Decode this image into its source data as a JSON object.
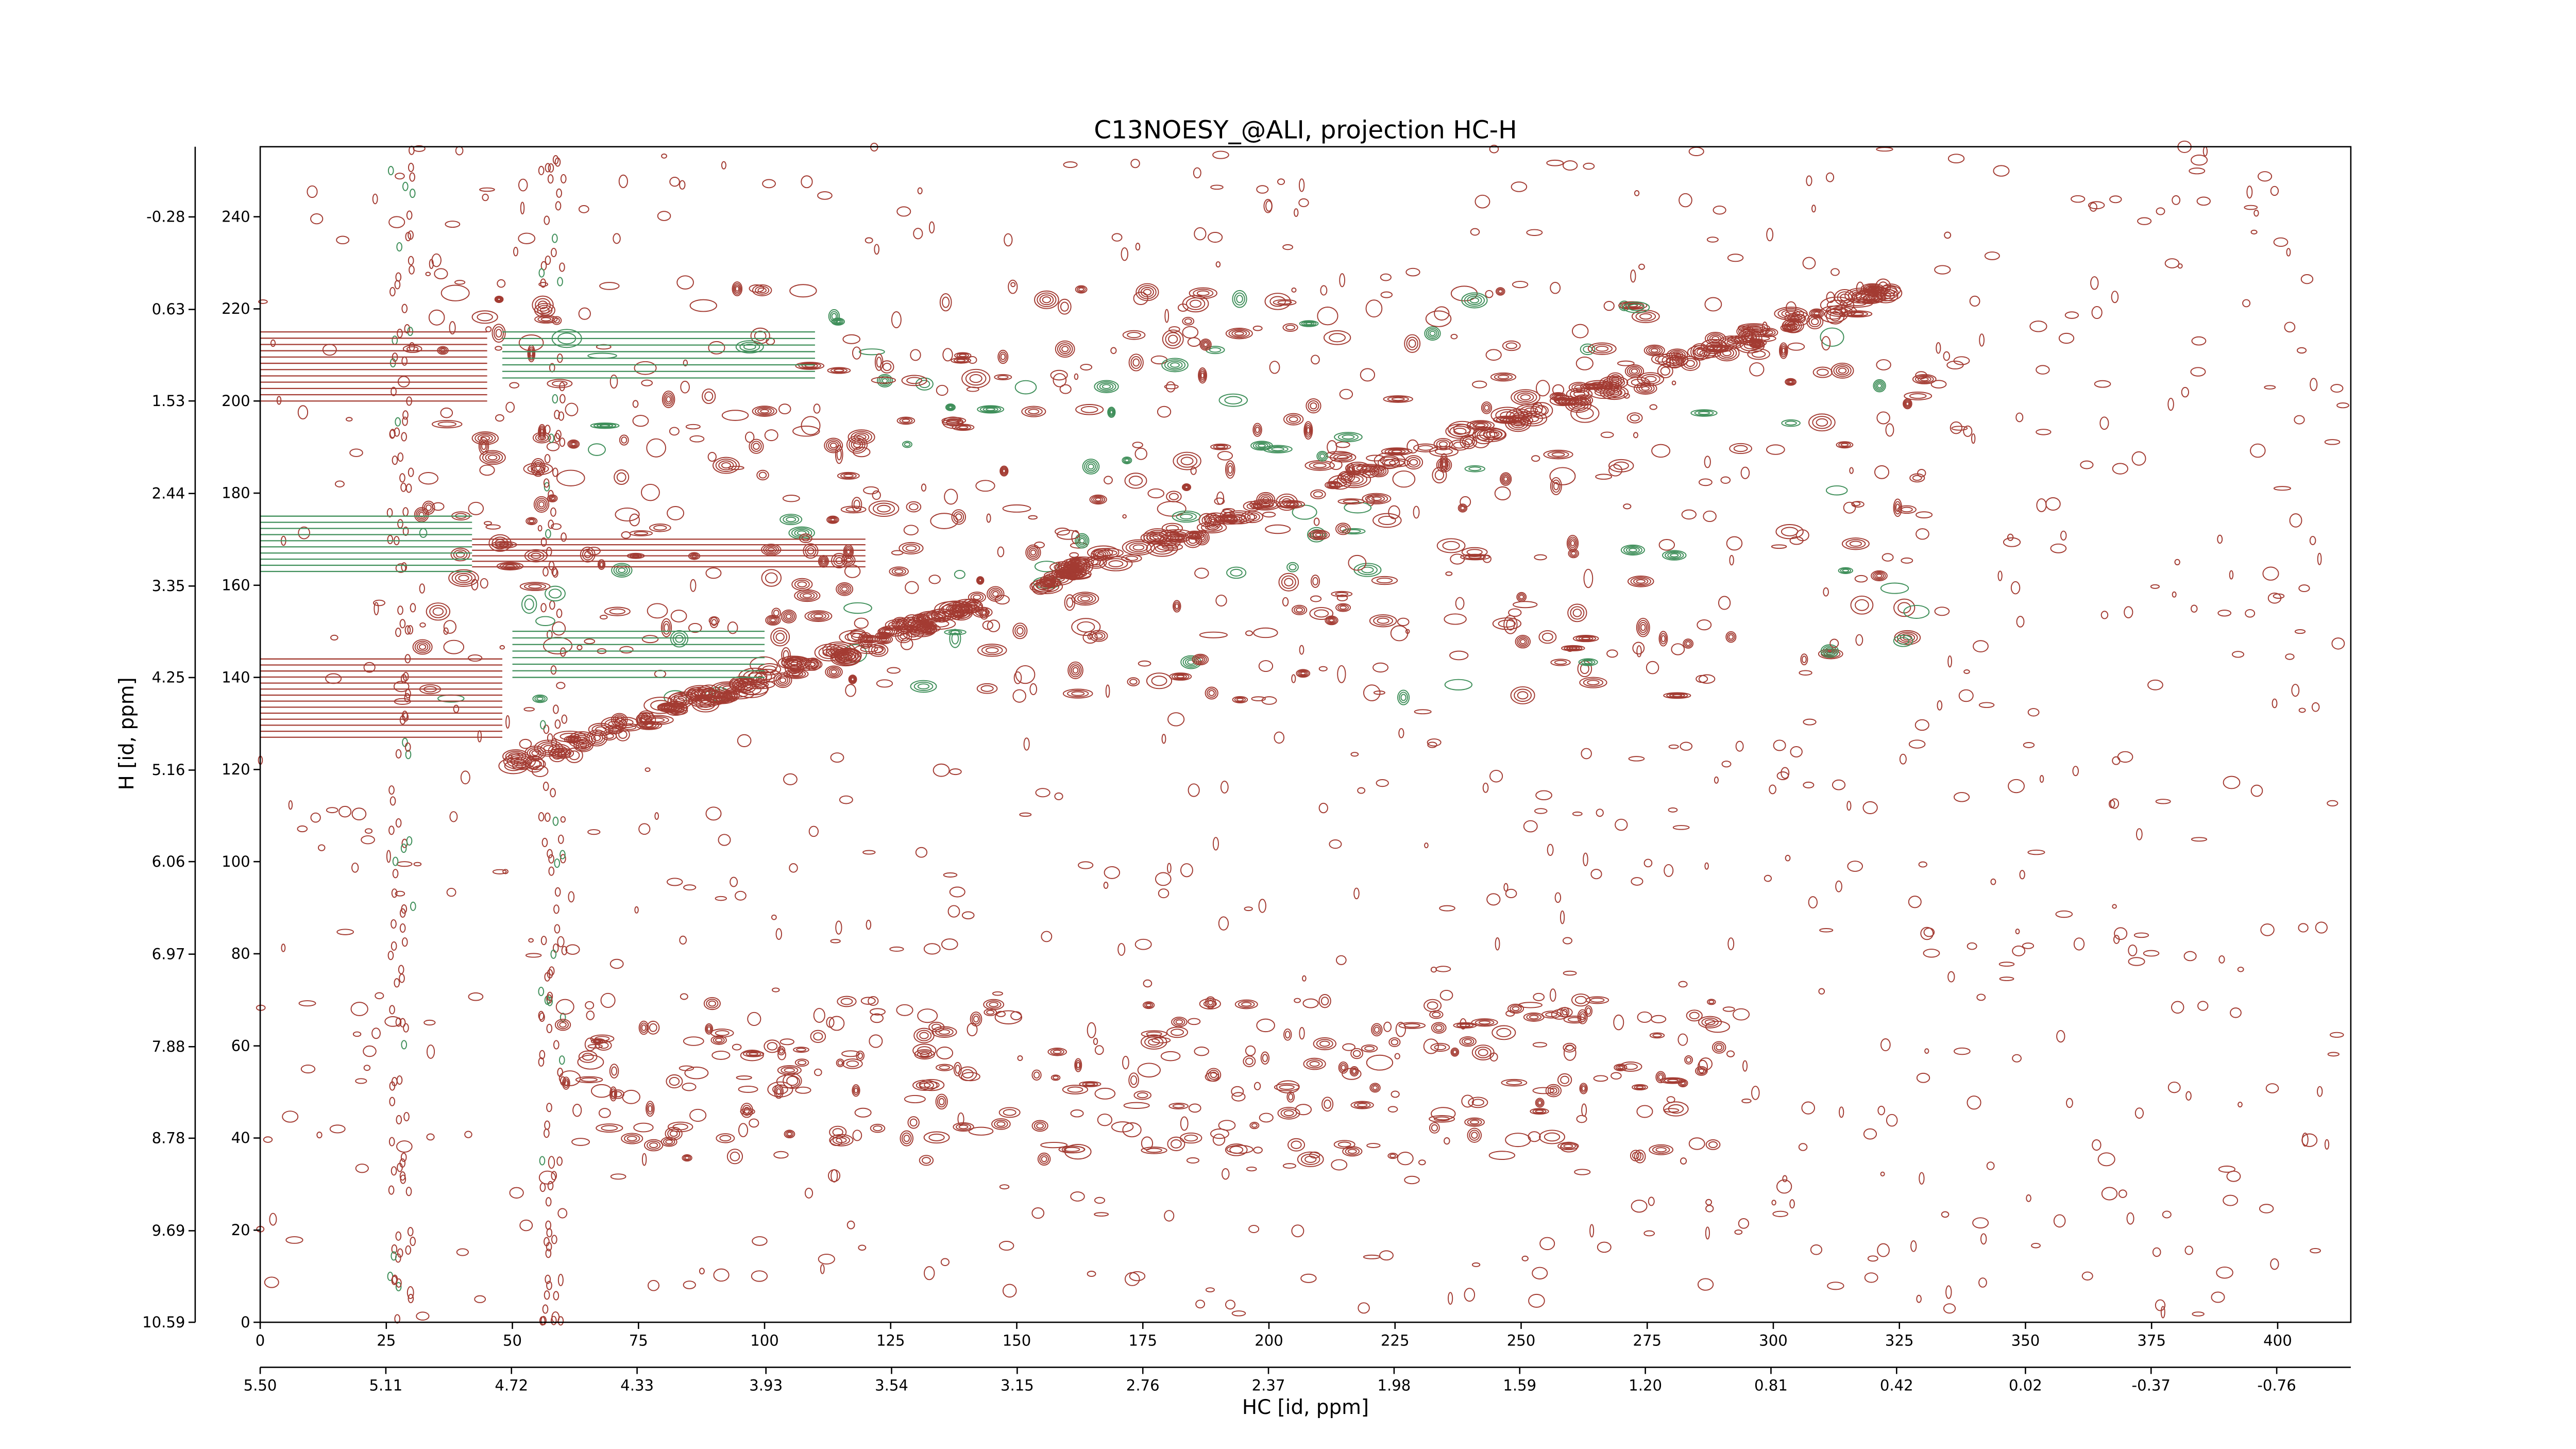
{
  "chart_data": {
    "type": "contour",
    "title": "C13NOESY_@ALI, projection HC-H",
    "xlabel": "HC [id, ppm]",
    "ylabel": "H [id, ppm]",
    "xlim": [
      0,
      414.5
    ],
    "xticks": [
      0,
      25,
      50,
      75,
      100,
      125,
      150,
      175,
      200,
      225,
      250,
      275,
      300,
      325,
      350,
      375,
      400
    ],
    "x2lim": [
      5.5,
      -0.99
    ],
    "x2ticks": [
      {
        "value": 5.5,
        "label": "5.50"
      },
      5.11,
      4.72,
      4.33,
      3.93,
      3.54,
      3.15,
      2.76,
      2.37,
      1.98,
      1.59,
      {
        "value": 1.2,
        "label": "1.20"
      },
      0.81,
      0.42,
      0.02,
      -0.37,
      -0.76
    ],
    "ylim": [
      0,
      255.2
    ],
    "yticks": [
      0,
      20,
      40,
      60,
      80,
      100,
      120,
      140,
      160,
      180,
      200,
      220,
      240
    ],
    "y2lim": [
      10.59,
      -0.97
    ],
    "y2ticks": [
      10.59,
      9.69,
      8.78,
      7.88,
      6.97,
      6.06,
      5.16,
      4.25,
      3.35,
      2.44,
      1.53,
      0.63,
      -0.28
    ],
    "colors": {
      "positive": "#a33b32",
      "negative": "#3f8f5a"
    }
  }
}
